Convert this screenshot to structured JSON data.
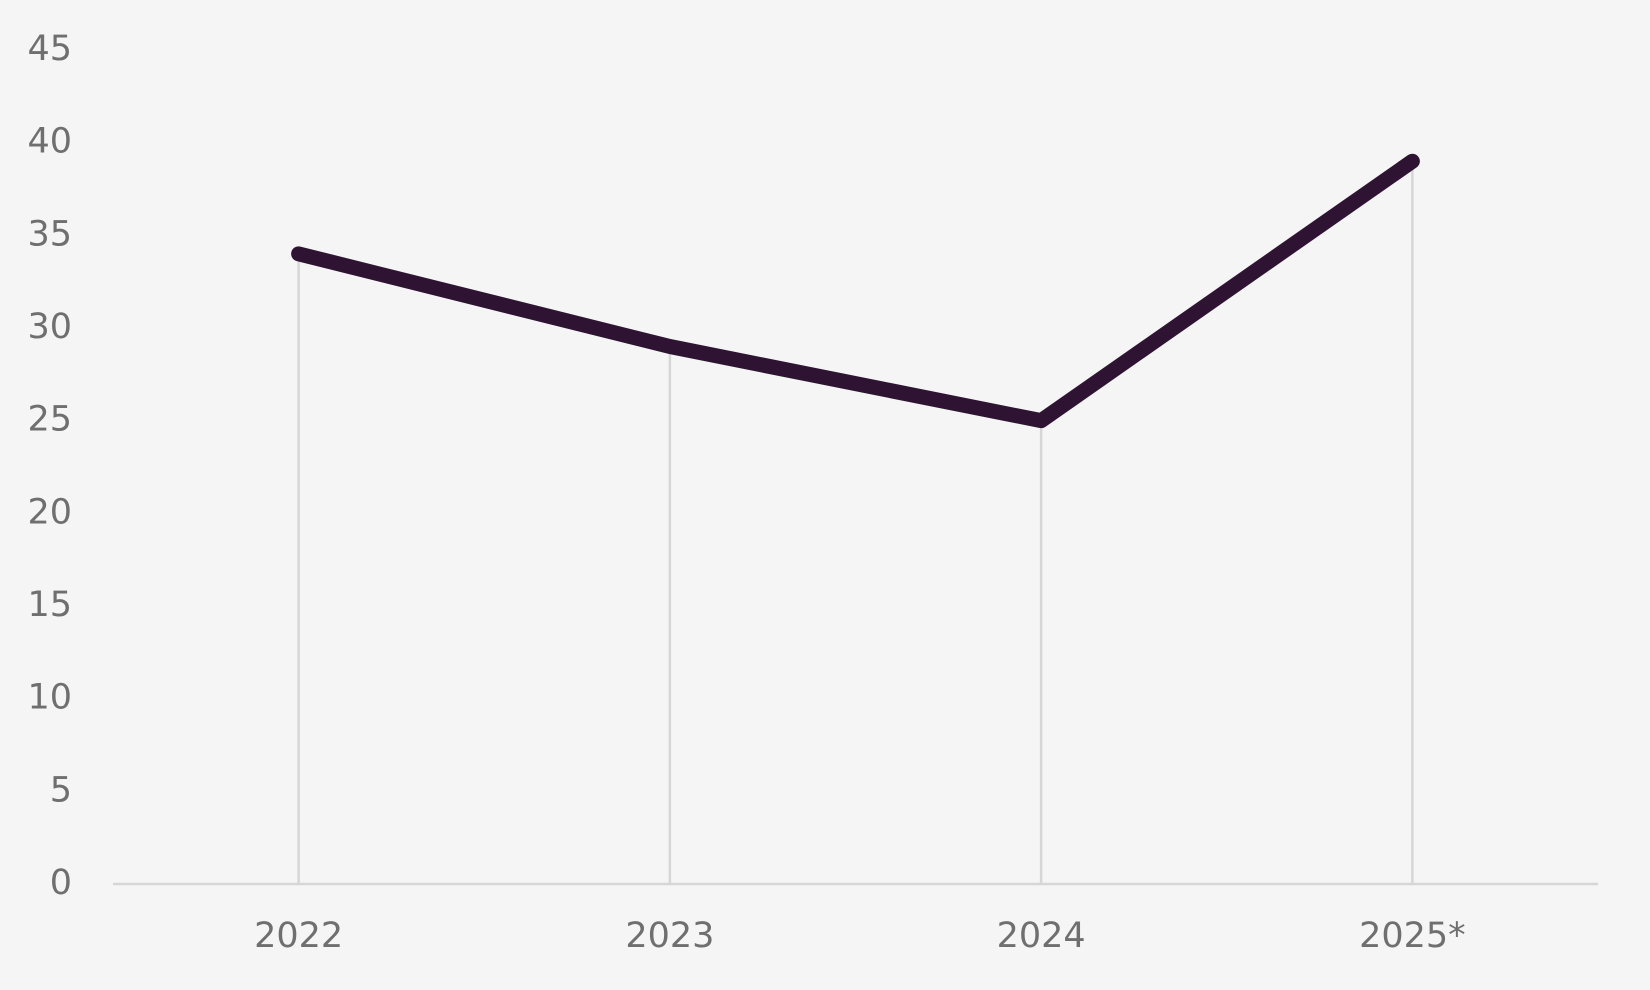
{
  "chart_data": {
    "type": "line",
    "categories": [
      "2022",
      "2023",
      "2024",
      "2025*"
    ],
    "values": [
      34,
      29,
      25,
      39
    ],
    "color": "#2e1432",
    "ylim": [
      0,
      45
    ],
    "yticks": [
      0,
      5,
      10,
      15,
      20,
      25,
      30,
      35,
      40,
      45
    ],
    "drop_lines": true
  }
}
